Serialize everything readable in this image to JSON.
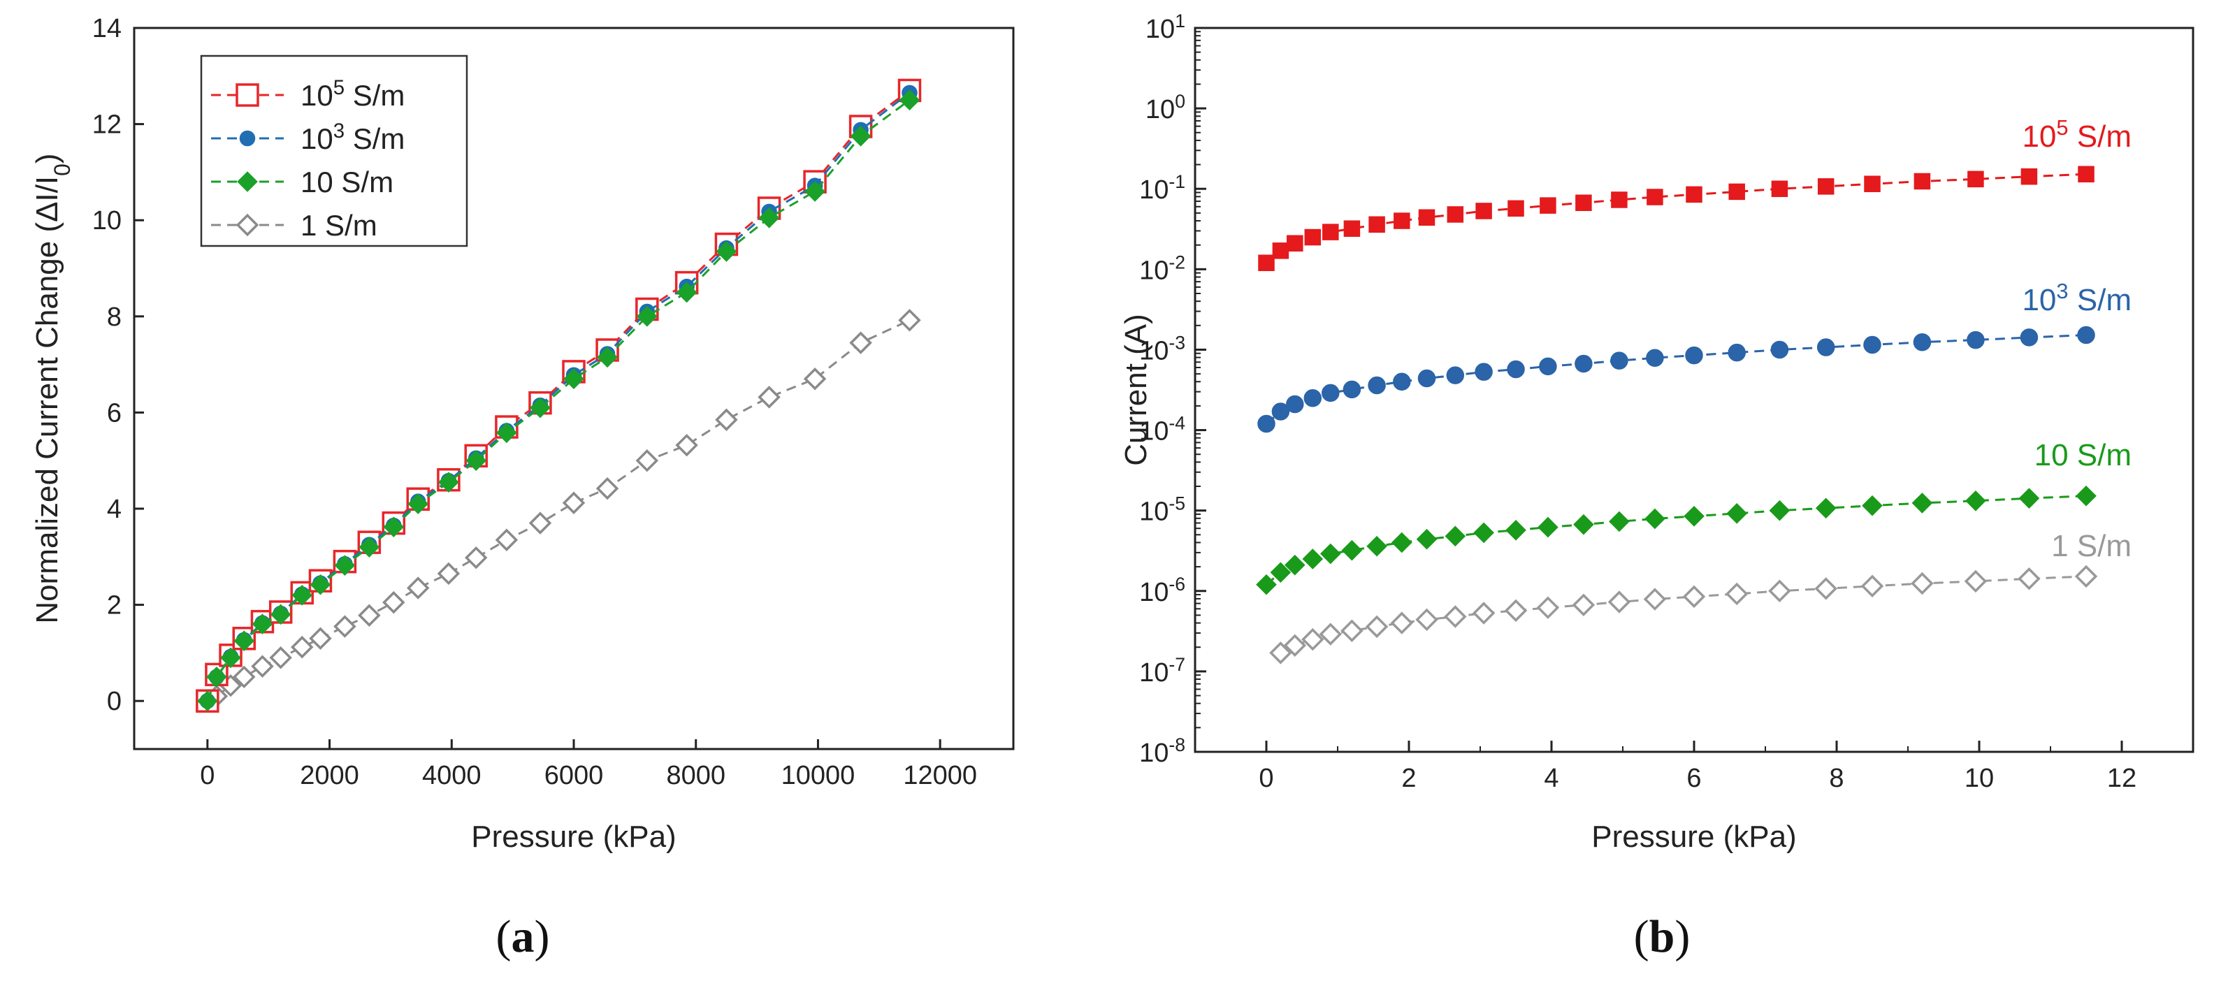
{
  "chart_data": [
    {
      "panel": "a",
      "type": "scatter",
      "caption": [
        "(",
        "a",
        ")"
      ],
      "xlabel": "Pressure (kPa)",
      "ylabel": "Normalized Current Change (ΔI/I",
      "ylabel_sub": "0",
      "ylabel_end": ")",
      "xlim": [
        -1200,
        13200
      ],
      "ylim": [
        -1,
        14
      ],
      "xticks": [
        0,
        2000,
        4000,
        6000,
        8000,
        10000,
        12000
      ],
      "yticks": [
        0,
        2,
        4,
        6,
        8,
        10,
        12,
        14
      ],
      "legend_position": "top-left",
      "series": [
        {
          "name": "10^5 S/m",
          "base": "10",
          "exp": "5",
          "unit": " S/m",
          "color": "#e8262a",
          "marker": "square-open",
          "x": [
            0,
            150,
            380,
            600,
            900,
            1200,
            1550,
            1850,
            2250,
            2650,
            3050,
            3450,
            3950,
            4400,
            4900,
            5450,
            6000,
            6550,
            7200,
            7850,
            8500,
            9200,
            9950,
            10700,
            11500
          ],
          "y": [
            0,
            0.55,
            0.95,
            1.3,
            1.65,
            1.85,
            2.25,
            2.5,
            2.9,
            3.3,
            3.7,
            4.2,
            4.6,
            5.1,
            5.7,
            6.2,
            6.85,
            7.3,
            8.15,
            8.7,
            9.5,
            10.25,
            10.8,
            11.95,
            12.7
          ]
        },
        {
          "name": "10^3 S/m",
          "base": "10",
          "exp": "3",
          "unit": " S/m",
          "color": "#1f6fb2",
          "marker": "circle",
          "x": [
            0,
            150,
            380,
            600,
            900,
            1200,
            1550,
            1850,
            2250,
            2650,
            3050,
            3450,
            3950,
            4400,
            4900,
            5450,
            6000,
            6550,
            7200,
            7850,
            8500,
            9200,
            9950,
            10700,
            11500
          ],
          "y": [
            0,
            0.5,
            0.92,
            1.27,
            1.62,
            1.82,
            2.22,
            2.45,
            2.85,
            3.25,
            3.65,
            4.15,
            4.58,
            5.05,
            5.62,
            6.15,
            6.78,
            7.22,
            8.1,
            8.62,
            9.42,
            10.18,
            10.72,
            11.88,
            12.65
          ]
        },
        {
          "name": "10 S/m",
          "base": "10",
          "exp": "",
          "unit": " S/m",
          "color": "#1aa12a",
          "marker": "diamond",
          "x": [
            0,
            150,
            380,
            600,
            900,
            1200,
            1550,
            1850,
            2250,
            2650,
            3050,
            3450,
            3950,
            4400,
            4900,
            5450,
            6000,
            6550,
            7200,
            7850,
            8500,
            9200,
            9950,
            10700,
            11500
          ],
          "y": [
            0,
            0.5,
            0.9,
            1.25,
            1.6,
            1.8,
            2.2,
            2.42,
            2.82,
            3.2,
            3.62,
            4.1,
            4.55,
            5.0,
            5.58,
            6.1,
            6.7,
            7.15,
            8.0,
            8.5,
            9.35,
            10.05,
            10.6,
            11.75,
            12.5
          ]
        },
        {
          "name": "1 S/m",
          "base": "1",
          "exp": "",
          "unit": " S/m",
          "color": "#8a8a8a",
          "marker": "diamond-open",
          "x": [
            0,
            150,
            380,
            600,
            900,
            1200,
            1550,
            1850,
            2250,
            2650,
            3050,
            3450,
            3950,
            4400,
            4900,
            5450,
            6000,
            6550,
            7200,
            7850,
            8500,
            9200,
            9950,
            10700,
            11500
          ],
          "y": [
            0,
            0.1,
            0.32,
            0.5,
            0.72,
            0.9,
            1.12,
            1.3,
            1.55,
            1.78,
            2.05,
            2.35,
            2.65,
            2.98,
            3.35,
            3.7,
            4.12,
            4.42,
            5.0,
            5.32,
            5.85,
            6.32,
            6.7,
            7.45,
            7.92
          ]
        }
      ]
    },
    {
      "panel": "b",
      "type": "scatter",
      "y_scale": "log",
      "caption": [
        "(",
        "b",
        ")"
      ],
      "xlabel": "Pressure (kPa)",
      "ylabel": "Current (A)",
      "xlim": [
        -1,
        13
      ],
      "ylim_exp": [
        -8,
        1
      ],
      "xticks": [
        0,
        2,
        4,
        6,
        8,
        10,
        12
      ],
      "yticks_exp": [
        "-8",
        "-7",
        "-6",
        "-5",
        "-4",
        "-3",
        "-2",
        "-1",
        "0",
        "1"
      ],
      "ytick_base": "10",
      "series": [
        {
          "label_base": "10",
          "label_exp": "5",
          "label_unit": " S/m",
          "color": "#e41a1c",
          "marker": "square",
          "x": [
            0,
            0.2,
            0.4,
            0.65,
            0.9,
            1.2,
            1.55,
            1.9,
            2.25,
            2.65,
            3.05,
            3.5,
            3.95,
            4.45,
            4.95,
            5.45,
            6.0,
            6.6,
            7.2,
            7.85,
            8.5,
            9.2,
            9.95,
            10.7,
            11.5
          ],
          "y": [
            0.012,
            0.017,
            0.021,
            0.025,
            0.029,
            0.032,
            0.036,
            0.04,
            0.044,
            0.048,
            0.053,
            0.057,
            0.062,
            0.067,
            0.073,
            0.079,
            0.085,
            0.092,
            0.1,
            0.107,
            0.115,
            0.124,
            0.132,
            0.142,
            0.152
          ]
        },
        {
          "label_base": "10",
          "label_exp": "3",
          "label_unit": " S/m",
          "color": "#2b64a8",
          "marker": "circle",
          "x": [
            0,
            0.2,
            0.4,
            0.65,
            0.9,
            1.2,
            1.55,
            1.9,
            2.25,
            2.65,
            3.05,
            3.5,
            3.95,
            4.45,
            4.95,
            5.45,
            6.0,
            6.6,
            7.2,
            7.85,
            8.5,
            9.2,
            9.95,
            10.7,
            11.5
          ],
          "y": [
            0.00012,
            0.00017,
            0.00021,
            0.00025,
            0.00029,
            0.00032,
            0.00036,
            0.0004,
            0.00044,
            0.00048,
            0.00053,
            0.00057,
            0.00062,
            0.00067,
            0.00073,
            0.00079,
            0.00085,
            0.00092,
            0.001,
            0.00107,
            0.00115,
            0.00124,
            0.00132,
            0.00142,
            0.00152
          ]
        },
        {
          "label_base": "10",
          "label_exp": "",
          "label_unit": " S/m",
          "color": "#1a9a1a",
          "marker": "diamond",
          "x": [
            0,
            0.2,
            0.4,
            0.65,
            0.9,
            1.2,
            1.55,
            1.9,
            2.25,
            2.65,
            3.05,
            3.5,
            3.95,
            4.45,
            4.95,
            5.45,
            6.0,
            6.6,
            7.2,
            7.85,
            8.5,
            9.2,
            9.95,
            10.7,
            11.5
          ],
          "y": [
            1.2e-06,
            1.7e-06,
            2.1e-06,
            2.5e-06,
            2.9e-06,
            3.2e-06,
            3.6e-06,
            4e-06,
            4.4e-06,
            4.8e-06,
            5.3e-06,
            5.7e-06,
            6.2e-06,
            6.7e-06,
            7.3e-06,
            7.9e-06,
            8.5e-06,
            9.2e-06,
            1e-05,
            1.07e-05,
            1.15e-05,
            1.24e-05,
            1.32e-05,
            1.42e-05,
            1.52e-05
          ]
        },
        {
          "label_base": "1",
          "label_exp": "",
          "label_unit": " S/m",
          "color": "#999999",
          "marker": "diamond-open",
          "x": [
            0.2,
            0.4,
            0.65,
            0.9,
            1.2,
            1.55,
            1.9,
            2.25,
            2.65,
            3.05,
            3.5,
            3.95,
            4.45,
            4.95,
            5.45,
            6.0,
            6.6,
            7.2,
            7.85,
            8.5,
            9.2,
            9.95,
            10.7,
            11.5
          ],
          "y": [
            1.7e-07,
            2.1e-07,
            2.5e-07,
            2.9e-07,
            3.2e-07,
            3.6e-07,
            4e-07,
            4.4e-07,
            4.8e-07,
            5.3e-07,
            5.7e-07,
            6.2e-07,
            6.7e-07,
            7.3e-07,
            7.9e-07,
            8.5e-07,
            9.2e-07,
            1e-06,
            1.07e-06,
            1.15e-06,
            1.24e-06,
            1.32e-06,
            1.42e-06,
            1.52e-06
          ]
        }
      ]
    }
  ]
}
